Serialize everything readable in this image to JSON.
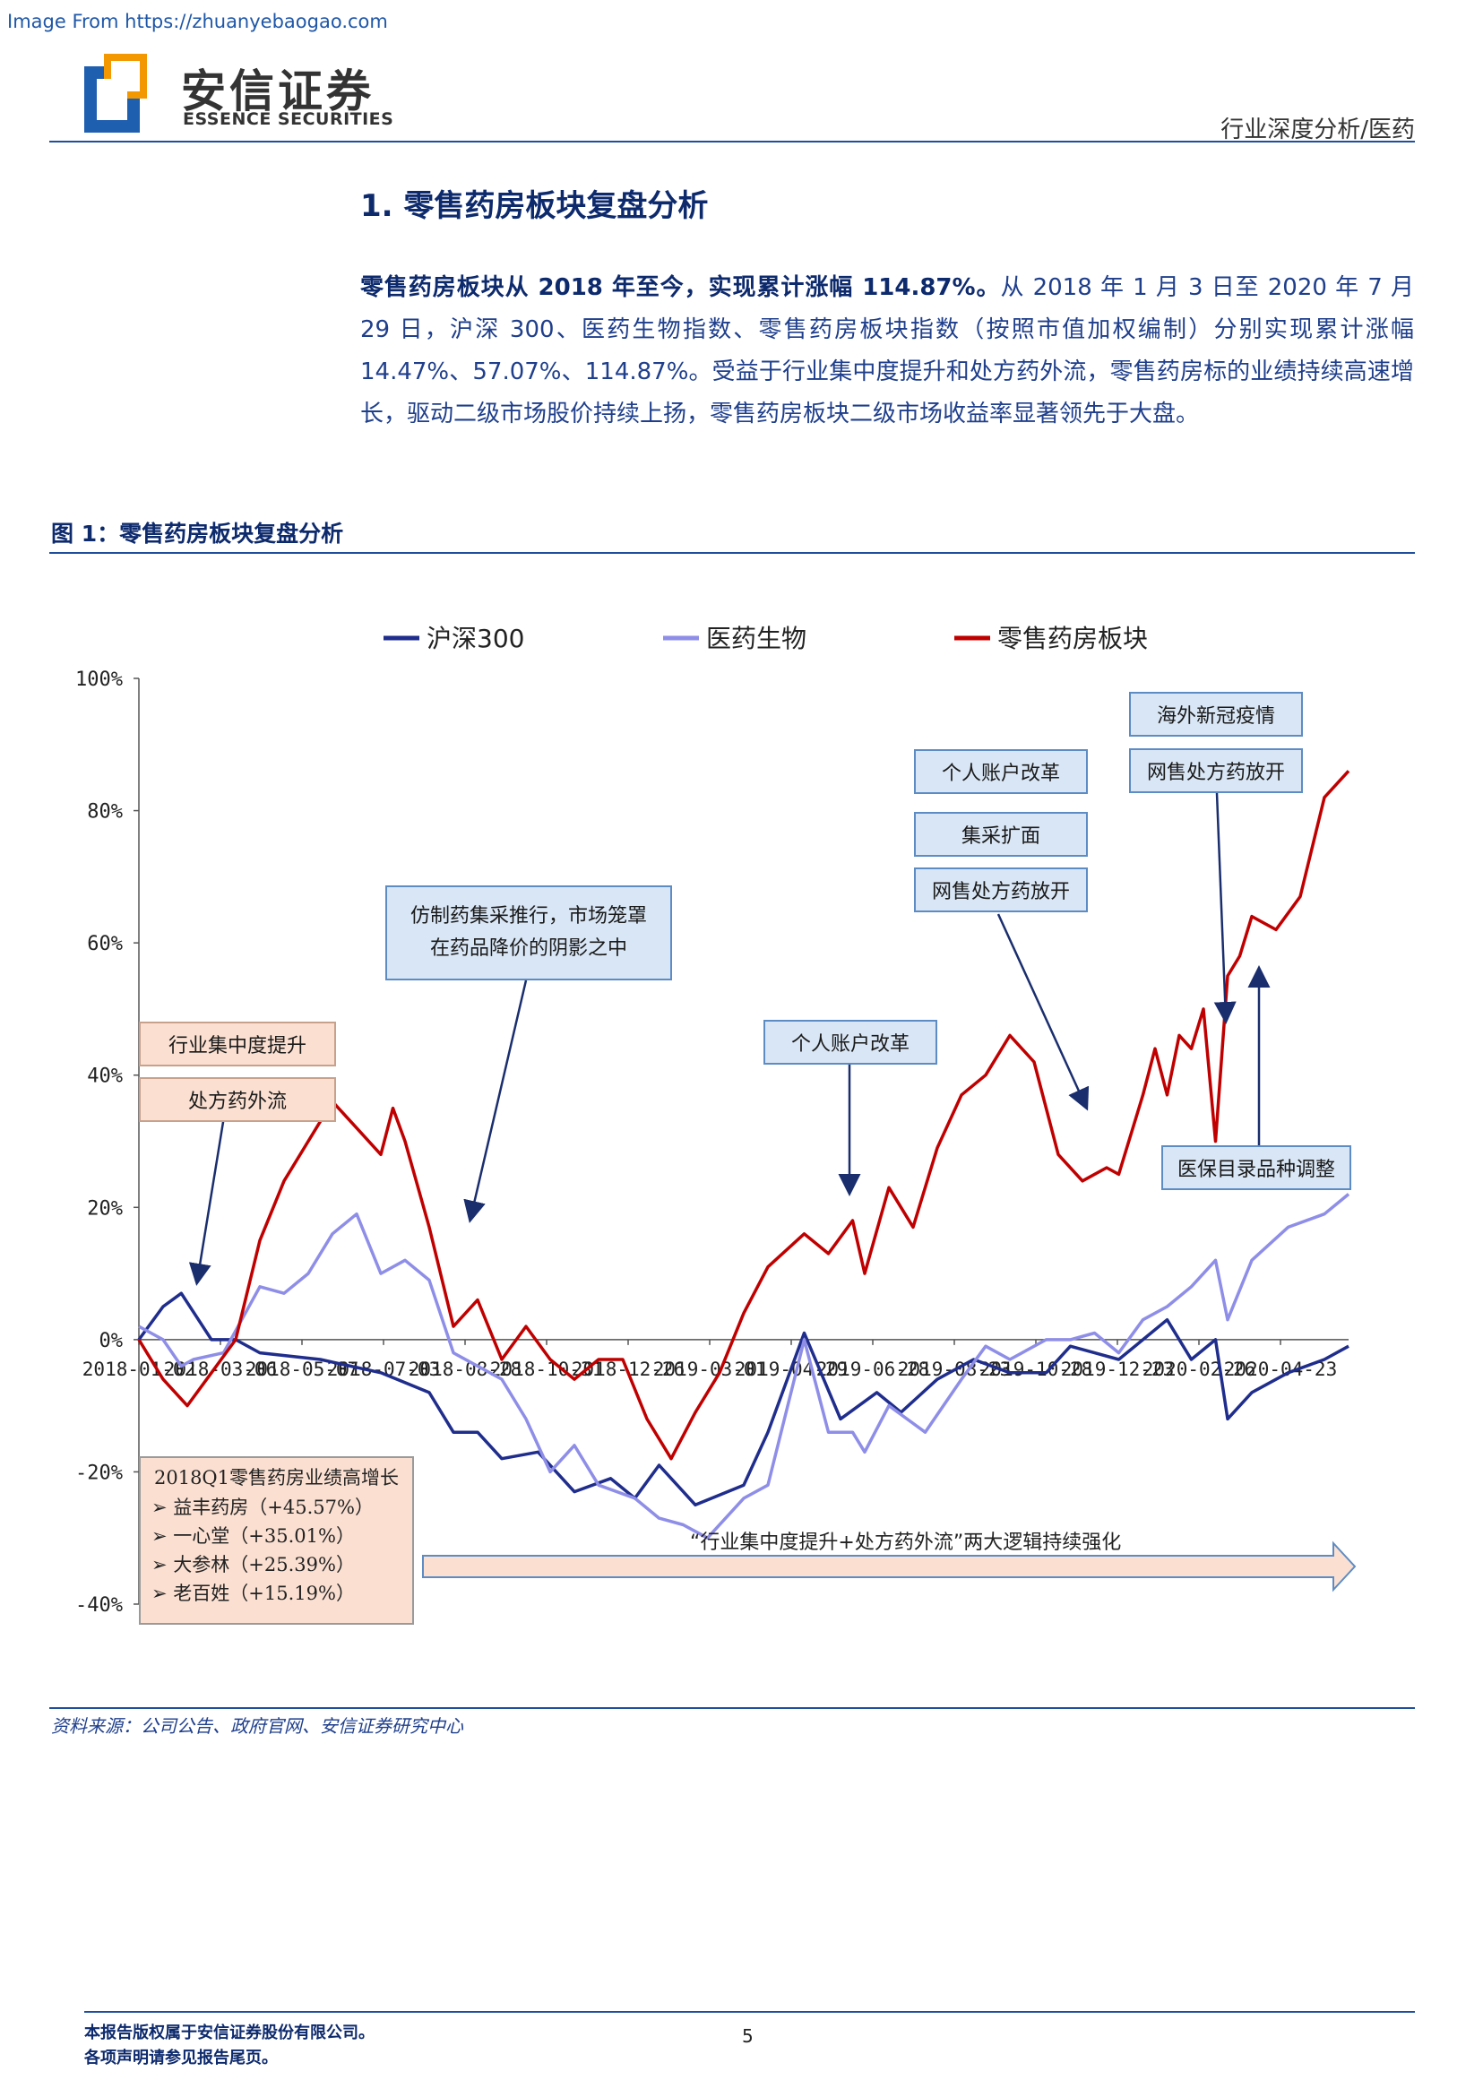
{
  "source_url": "Image From https://zhuanyebaogao.com",
  "logo": {
    "cn": "安信证券",
    "en": "ESSENCE SECURITIES"
  },
  "header_right": "行业深度分析/医药",
  "section_title": "1. 零售药房板块复盘分析",
  "body": {
    "bold_lead": "零售药房板块从 2018 年至今，实现累计涨幅 114.87%。",
    "rest": "从 2018 年 1 月 3 日至 2020 年 7 月 29 日，沪深 300、医药生物指数、零售药房板块指数（按照市值加权编制）分别实现累计涨幅 14.47%、57.07%、114.87%。受益于行业集中度提升和处方药外流，零售药房标的业绩持续高速增长，驱动二级市场股价持续上扬，零售药房板块二级市场收益率显著领先于大盘。"
  },
  "figure_title": "图 1：零售药房板块复盘分析",
  "colors": {
    "hs300": "#1f2d8c",
    "pharma": "#8e8ee8",
    "retail": "#c00000",
    "accent": "#1f4e9c"
  },
  "chart_data": {
    "type": "line",
    "title": "",
    "ylim": [
      -40,
      100
    ],
    "y_ticks": [
      100,
      80,
      60,
      40,
      20,
      0,
      -20,
      -40
    ],
    "y_tick_labels": [
      "100%",
      "80%",
      "60%",
      "40%",
      "20%",
      "0%",
      "-20%",
      "-40%"
    ],
    "x_tick_labels": [
      "2018-01-02",
      "2018-03-06",
      "2018-05-07",
      "2018-07-03",
      "2018-08-28",
      "2018-10-31",
      "2018-12-26",
      "2019-03-01",
      "2019-04-29",
      "2019-06-28",
      "2019-08-23",
      "2019-10-28",
      "2019-12-23",
      "2020-02-26",
      "2020-04-23"
    ],
    "legend": [
      "沪深300",
      "医药生物",
      "零售药房板块"
    ],
    "series": [
      {
        "name": "沪深300",
        "color": "#1f2d8c",
        "x": [
          0,
          0.02,
          0.035,
          0.06,
          0.08,
          0.1,
          0.15,
          0.2,
          0.24,
          0.26,
          0.28,
          0.3,
          0.33,
          0.36,
          0.39,
          0.41,
          0.43,
          0.46,
          0.5,
          0.52,
          0.55,
          0.58,
          0.61,
          0.63,
          0.66,
          0.69,
          0.72,
          0.75,
          0.77,
          0.79,
          0.81,
          0.83,
          0.85,
          0.87,
          0.89,
          0.9,
          0.92,
          0.95,
          0.98,
          1.0
        ],
        "values": [
          0,
          5,
          7,
          0,
          0,
          -2,
          -3,
          -5,
          -8,
          -14,
          -14,
          -18,
          -17,
          -23,
          -21,
          -24,
          -19,
          -25,
          -22,
          -14,
          1,
          -12,
          -8,
          -11,
          -6,
          -3,
          -5,
          -5,
          -1,
          -2,
          -3,
          0,
          3,
          -3,
          0,
          -12,
          -8,
          -5,
          -3,
          -1
        ]
      },
      {
        "name": "医药生物",
        "color": "#8e8ee8",
        "x": [
          0,
          0.02,
          0.035,
          0.045,
          0.07,
          0.1,
          0.12,
          0.14,
          0.16,
          0.18,
          0.2,
          0.22,
          0.24,
          0.26,
          0.28,
          0.3,
          0.32,
          0.34,
          0.36,
          0.38,
          0.41,
          0.43,
          0.45,
          0.47,
          0.5,
          0.52,
          0.55,
          0.57,
          0.59,
          0.6,
          0.62,
          0.65,
          0.68,
          0.7,
          0.72,
          0.75,
          0.77,
          0.79,
          0.81,
          0.83,
          0.85,
          0.87,
          0.89,
          0.9,
          0.92,
          0.95,
          0.98,
          1.0
        ],
        "values": [
          2,
          0,
          -4,
          -3,
          -2,
          8,
          7,
          10,
          16,
          19,
          10,
          12,
          9,
          -2,
          -4,
          -6,
          -12,
          -20,
          -16,
          -22,
          -24,
          -27,
          -28,
          -30,
          -24,
          -22,
          0,
          -14,
          -14,
          -17,
          -10,
          -14,
          -6,
          -1,
          -3,
          0,
          0,
          1,
          -2,
          3,
          5,
          8,
          12,
          3,
          12,
          17,
          19,
          22
        ]
      },
      {
        "name": "零售药房板块",
        "color": "#c00000",
        "x": [
          0,
          0.02,
          0.04,
          0.06,
          0.08,
          0.1,
          0.12,
          0.14,
          0.16,
          0.18,
          0.2,
          0.21,
          0.22,
          0.24,
          0.26,
          0.28,
          0.3,
          0.32,
          0.34,
          0.36,
          0.38,
          0.4,
          0.42,
          0.44,
          0.46,
          0.48,
          0.5,
          0.52,
          0.55,
          0.57,
          0.59,
          0.6,
          0.62,
          0.64,
          0.66,
          0.68,
          0.7,
          0.72,
          0.74,
          0.76,
          0.78,
          0.8,
          0.81,
          0.82,
          0.83,
          0.84,
          0.85,
          0.86,
          0.87,
          0.88,
          0.89,
          0.9,
          0.91,
          0.92,
          0.94,
          0.96,
          0.98,
          1.0
        ],
        "values": [
          0,
          -6,
          -10,
          -5,
          0,
          15,
          24,
          30,
          36,
          32,
          28,
          35,
          30,
          17,
          2,
          6,
          -3,
          2,
          -3,
          -6,
          -3,
          -3,
          -12,
          -18,
          -11,
          -5,
          4,
          11,
          16,
          13,
          18,
          10,
          23,
          17,
          29,
          37,
          40,
          46,
          42,
          28,
          24,
          26,
          25,
          31,
          37,
          44,
          37,
          46,
          44,
          50,
          30,
          55,
          58,
          64,
          62,
          67,
          82,
          86
        ]
      }
    ],
    "annotations": [
      "行业集中度提升",
      "处方药外流",
      "仿制药集采推行，市场笼罩在药品降价的阴影之中",
      "个人账户改革",
      "个人账户改革",
      "集采扩面",
      "网售处方药放开",
      "海外新冠疫情",
      "网售处方药放开",
      "医保目录品种调整"
    ]
  },
  "annotations": {
    "a1": "行业集中度提升",
    "a2": "处方药外流",
    "a3_line1": "仿制药集采推行，市场笼罩",
    "a3_line2": "在药品降价的阴影之中",
    "a4": "个人账户改革",
    "a5": "个人账户改革",
    "a6": "集采扩面",
    "a7": "网售处方药放开",
    "a8": "海外新冠疫情",
    "a9": "网售处方药放开",
    "a10": "医保目录品种调整"
  },
  "q1box": {
    "title": "2018Q1零售药房业绩高增长",
    "items": [
      "➢ 益丰药房（+45.57%）",
      "➢ 一心堂（+35.01%）",
      "➢ 大参林（+25.39%）",
      "➢ 老百姓（+15.19%）"
    ]
  },
  "strong_text": "“行业集中度提升+处方药外流”两大逻辑持续强化",
  "source": "资料来源：公司公告、政府官网、安信证券研究中心",
  "footer": {
    "line1": "本报告版权属于安信证券股份有限公司。",
    "line2": "各项声明请参见报告尾页。",
    "page": "5"
  }
}
